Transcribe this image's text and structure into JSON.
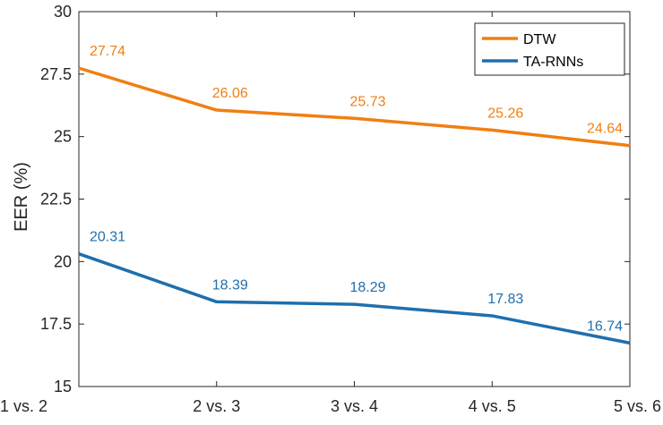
{
  "chart_data": {
    "type": "line",
    "title": "",
    "xlabel": "",
    "ylabel": "EER (%)",
    "categories": [
      "1 vs. 2",
      "2 vs. 3",
      "3 vs. 4",
      "4 vs. 5",
      "5 vs. 6"
    ],
    "ylim": [
      15,
      30
    ],
    "yticks": [
      15,
      17.5,
      20,
      22.5,
      25,
      27.5,
      30
    ],
    "ytick_labels": [
      "15",
      "17.5",
      "20",
      "22.5",
      "25",
      "27.5",
      "30"
    ],
    "grid": false,
    "legend_position": "top-right",
    "series": [
      {
        "name": "DTW",
        "color": "#f07f13",
        "values": [
          27.74,
          26.06,
          25.73,
          25.26,
          24.64
        ],
        "labels": [
          "27.74",
          "26.06",
          "25.73",
          "25.26",
          "24.64"
        ]
      },
      {
        "name": "TA-RNNs",
        "color": "#1f6fad",
        "values": [
          20.31,
          18.39,
          18.29,
          17.83,
          16.74
        ],
        "labels": [
          "20.31",
          "18.39",
          "18.29",
          "17.83",
          "16.74"
        ]
      }
    ]
  }
}
